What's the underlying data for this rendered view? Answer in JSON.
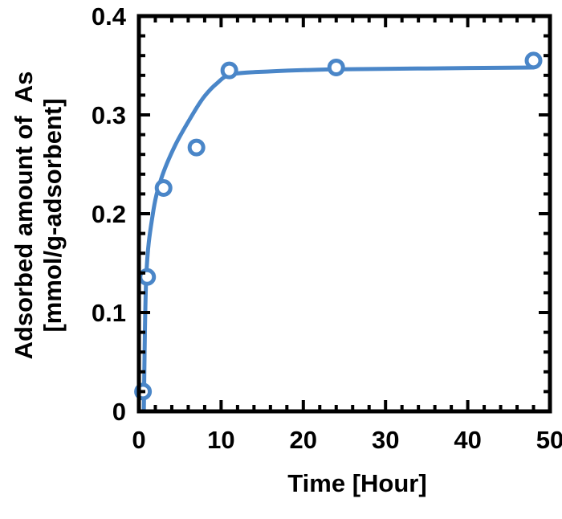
{
  "chart_data": {
    "type": "scatter",
    "xlabel": "Time [Hour]",
    "ylabel_lines": [
      "Adsorbed amount of  As",
      "[mmol/g-adsorbent]"
    ],
    "xlim": [
      0,
      50
    ],
    "ylim": [
      0,
      0.4
    ],
    "x_ticks": [
      0,
      10,
      20,
      30,
      40,
      50
    ],
    "x_tick_labels": [
      "0",
      "10",
      "20",
      "30",
      "40",
      "50"
    ],
    "y_ticks": [
      0,
      0.1,
      0.2,
      0.3,
      0.4
    ],
    "y_tick_labels": [
      "0",
      "0.1",
      "0.2",
      "0.3",
      "0.4"
    ],
    "x_minor_step": 2,
    "y_minor_step": 0.02,
    "grid": false,
    "color": "#4a86c8",
    "points": {
      "x": [
        0.5,
        1,
        3,
        7,
        11,
        24,
        48
      ],
      "y": [
        0.02,
        0.136,
        0.226,
        0.267,
        0.345,
        0.348,
        0.355
      ]
    },
    "fit_curve": {
      "x": [
        0.6,
        0.9,
        1.7,
        2.7,
        4.4,
        6.5,
        7.9,
        9.5,
        11.3,
        16,
        23.6,
        35,
        48
      ],
      "y": [
        0,
        0.137,
        0.2,
        0.235,
        0.269,
        0.3,
        0.318,
        0.332,
        0.341,
        0.344,
        0.346,
        0.347,
        0.348
      ]
    }
  }
}
